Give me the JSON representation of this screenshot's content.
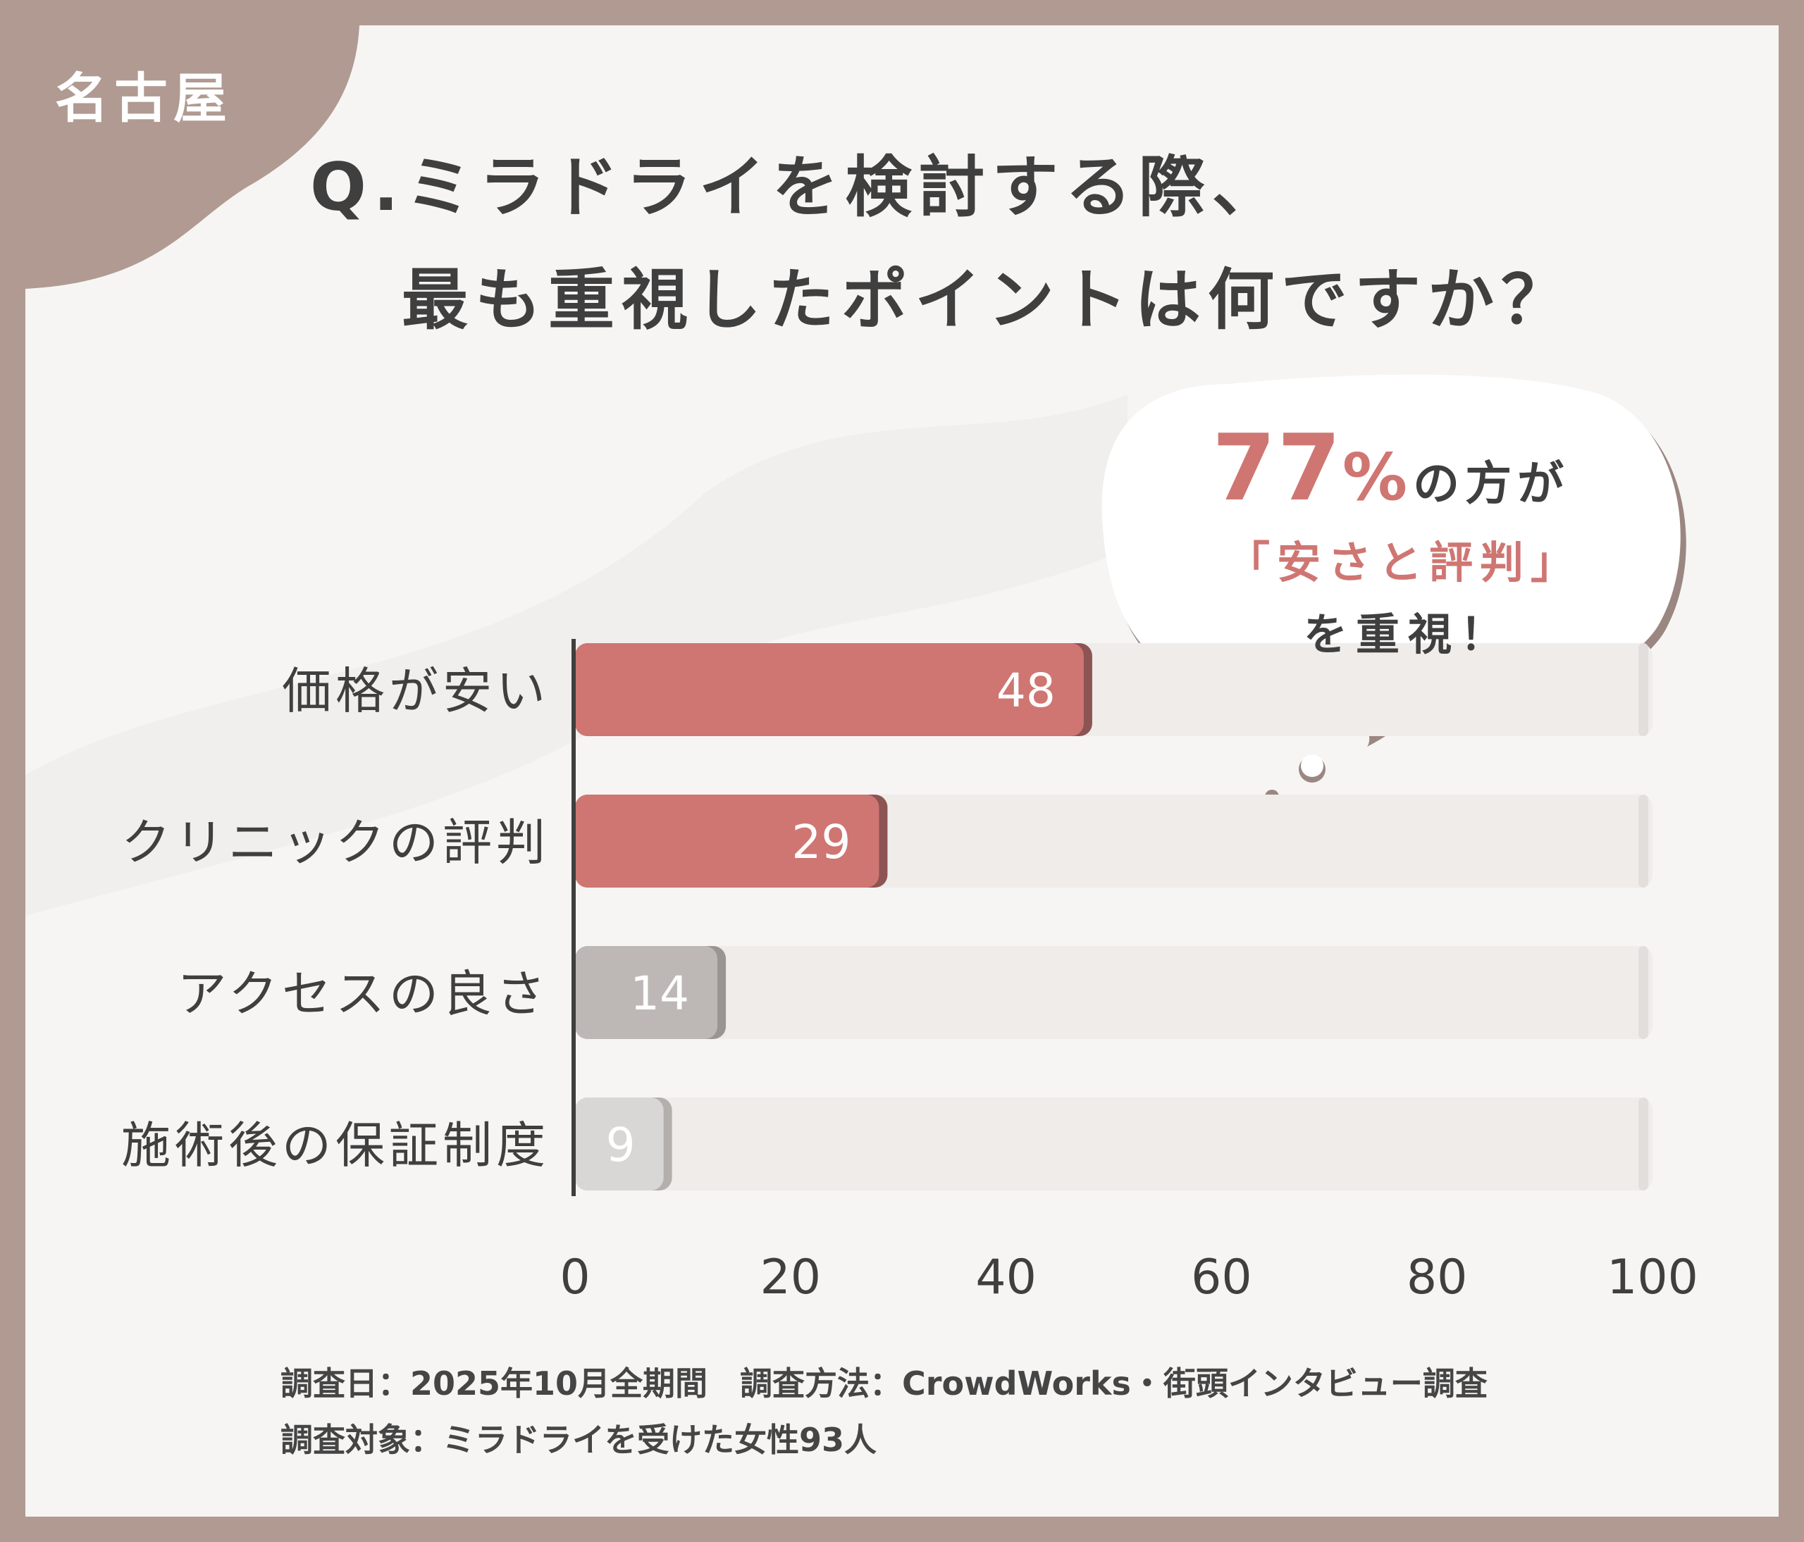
{
  "badge": {
    "city": "名古屋"
  },
  "question": {
    "line1": "Q.ミラドライを検討する際、",
    "line2": "最も重視したポイントは何ですか？"
  },
  "callout": {
    "percent": "77",
    "percent_sign": "%",
    "line1_suffix": "の方が",
    "line2": "「安さと評判」",
    "line3": "を重視！"
  },
  "chart_data": {
    "type": "bar",
    "orientation": "horizontal",
    "categories": [
      "価格が安い",
      "クリニックの評判",
      "アクセスの良さ",
      "施術後の保証制度"
    ],
    "values": [
      48,
      29,
      14,
      9
    ],
    "xlim": [
      0,
      100
    ],
    "xticks": [
      0,
      20,
      40,
      60,
      80,
      100
    ],
    "grid": false,
    "colors": {
      "highlight": "#cf7672",
      "highlight_shadow": "#8c5453",
      "mid": "#bdb8b6",
      "mid_shadow": "#9a9492",
      "light": "#d9d7d6",
      "light_shadow": "#b3afad",
      "track": "#efecea",
      "axis": "#3f3f3f"
    }
  },
  "footnote": {
    "line1": "調査日：2025年10月全期間　調査方法：CrowdWorks・街頭インタビュー調査",
    "line2": "調査対象：ミラドライを受けた女性93人"
  },
  "colors": {
    "frame": "#b09a91",
    "card": "#f6f5f4",
    "text": "#3f3f3f",
    "accent": "#cf7672"
  }
}
